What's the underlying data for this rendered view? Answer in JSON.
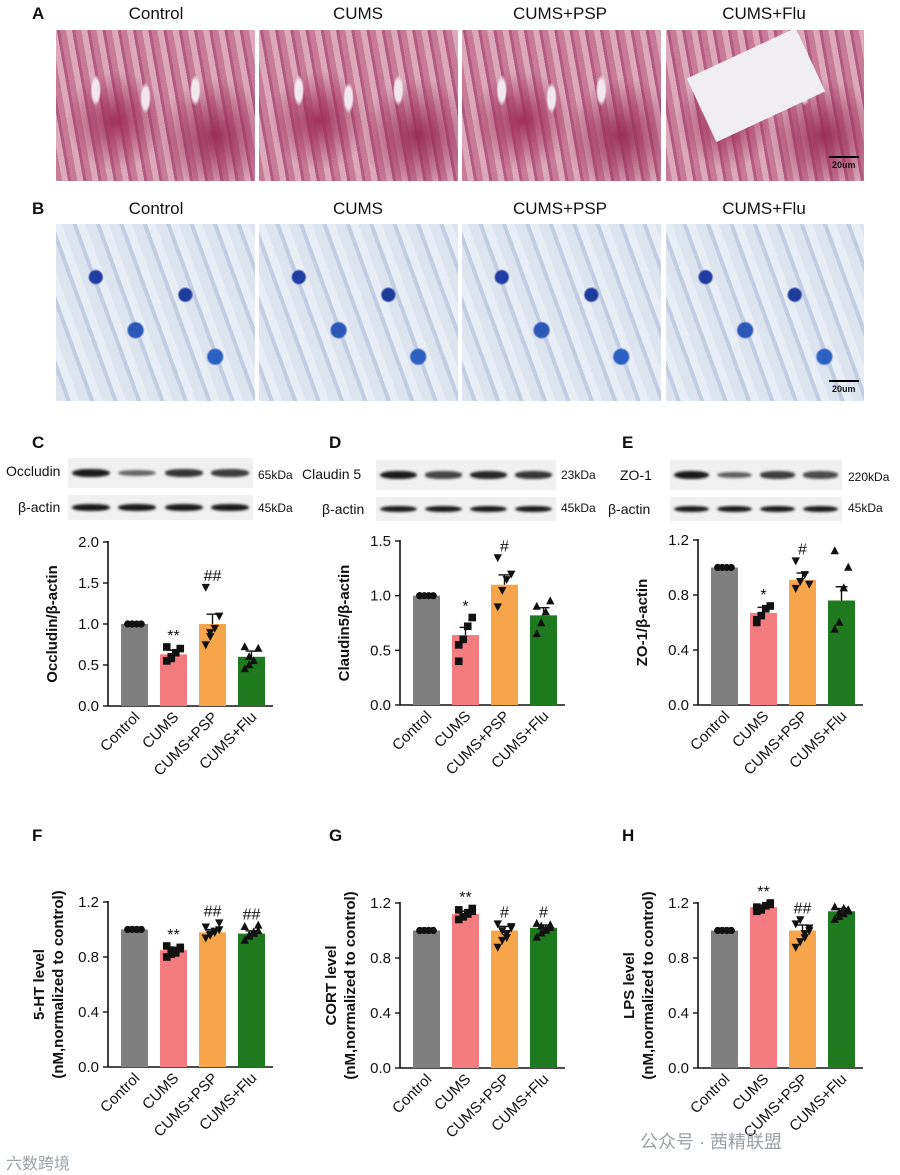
{
  "panel_labels": {
    "A": "A",
    "B": "B",
    "C": "C",
    "D": "D",
    "E": "E",
    "F": "F",
    "G": "G",
    "H": "H"
  },
  "groups": [
    "Control",
    "CUMS",
    "CUMS+PSP",
    "CUMS+Flu"
  ],
  "histology": {
    "row_a_headers": [
      "Control",
      "CUMS",
      "CUMS+PSP",
      "CUMS+Flu"
    ],
    "row_b_headers": [
      "Control",
      "CUMS",
      "CUMS+PSP",
      "CUMS+Flu"
    ],
    "scale_bar": "20um"
  },
  "western_blots": [
    {
      "protein": "Occludin",
      "protein_kda": "65kDa",
      "loading": "β-actin",
      "loading_kda": "45kDa",
      "band_strength": [
        1.0,
        0.45,
        0.8,
        0.75
      ],
      "actin_strength": [
        1,
        1,
        1,
        1
      ]
    },
    {
      "protein": "Claudin 5",
      "protein_kda": "23kDa",
      "loading": "β-actin",
      "loading_kda": "45kDa",
      "band_strength": [
        1.0,
        0.7,
        0.9,
        0.8
      ],
      "actin_strength": [
        1,
        1,
        1,
        1
      ]
    },
    {
      "protein": "ZO-1",
      "protein_kda": "220kDa",
      "loading": "β-actin",
      "loading_kda": "45kDa",
      "band_strength": [
        1.0,
        0.5,
        0.75,
        0.65
      ],
      "actin_strength": [
        1,
        1,
        1,
        1
      ]
    }
  ],
  "colors": {
    "Control": "#7f7f7f",
    "CUMS": "#f47c80",
    "CUMS+PSP": "#f7a54a",
    "CUMS+Flu": "#1f7a1f"
  },
  "chart_data": [
    {
      "id": "C",
      "type": "bar",
      "categories": [
        "Control",
        "CUMS",
        "CUMS+PSP",
        "CUMS+Flu"
      ],
      "values": [
        1.0,
        0.63,
        1.0,
        0.6
      ],
      "errors": [
        0,
        0.05,
        0.12,
        0.07
      ],
      "ylabel": "Occludin/β-actin",
      "ylim": [
        0,
        2.0
      ],
      "ticks": [
        0.0,
        0.5,
        1.0,
        1.5,
        2.0
      ],
      "tick_labels": [
        "0.0",
        "0.5",
        "1.0",
        "1.5",
        "2.0"
      ],
      "annotations": [
        "",
        "**",
        "##",
        ""
      ],
      "marker": [
        "circle",
        "square",
        "triangle-down",
        "triangle"
      ],
      "points": [
        [
          1,
          1,
          1,
          1,
          1,
          1
        ],
        [
          0.55,
          0.6,
          0.65,
          0.7,
          0.72,
          0.58
        ],
        [
          0.75,
          0.85,
          0.95,
          1.1,
          1.45,
          0.9
        ],
        [
          0.45,
          0.5,
          0.55,
          0.7,
          0.72,
          0.6
        ]
      ]
    },
    {
      "id": "D",
      "type": "bar",
      "categories": [
        "Control",
        "CUMS",
        "CUMS+PSP",
        "CUMS+Flu"
      ],
      "values": [
        1.0,
        0.64,
        1.1,
        0.82
      ],
      "errors": [
        0,
        0.07,
        0.09,
        0.07
      ],
      "ylabel": "Claudin5/β-actin",
      "ylim": [
        0,
        1.5
      ],
      "ticks": [
        0.0,
        0.5,
        1.0,
        1.5
      ],
      "tick_labels": [
        "0.0",
        "0.5",
        "1.0",
        "1.5"
      ],
      "annotations": [
        "",
        "*",
        "#",
        ""
      ],
      "marker": [
        "circle",
        "square",
        "triangle-down",
        "triangle"
      ],
      "points": [
        [
          1,
          1,
          1,
          1,
          1
        ],
        [
          0.4,
          0.6,
          0.72,
          0.8,
          0.55
        ],
        [
          0.9,
          1.05,
          1.15,
          1.2,
          1.35
        ],
        [
          0.65,
          0.75,
          0.85,
          0.95,
          0.9
        ]
      ]
    },
    {
      "id": "E",
      "type": "bar",
      "categories": [
        "Control",
        "CUMS",
        "CUMS+PSP",
        "CUMS+Flu"
      ],
      "values": [
        1.0,
        0.67,
        0.91,
        0.76
      ],
      "errors": [
        0,
        0.04,
        0.05,
        0.1
      ],
      "ylabel": "ZO-1/β-actin",
      "ylim": [
        0,
        1.2
      ],
      "ticks": [
        0.0,
        0.4,
        0.8,
        1.2
      ],
      "tick_labels": [
        "0.0",
        "0.4",
        "0.8",
        "1.2"
      ],
      "annotations": [
        "",
        "*",
        "#",
        ""
      ],
      "marker": [
        "circle",
        "square",
        "triangle-down",
        "triangle"
      ],
      "points": [
        [
          1,
          1,
          1,
          1,
          1
        ],
        [
          0.6,
          0.65,
          0.7,
          0.72,
          0.62
        ],
        [
          0.85,
          0.9,
          0.95,
          0.88,
          1.05
        ],
        [
          0.55,
          0.6,
          0.85,
          1.0,
          1.12
        ]
      ]
    },
    {
      "id": "F",
      "type": "bar",
      "categories": [
        "Control",
        "CUMS",
        "CUMS+PSP",
        "CUMS+Flu"
      ],
      "values": [
        1.0,
        0.85,
        0.98,
        0.97
      ],
      "errors": [
        0,
        0.02,
        0.02,
        0.02
      ],
      "ylabel": "5-HT level\n(nM,normalized to control)",
      "ylim": [
        0,
        1.2
      ],
      "ticks": [
        0.0,
        0.4,
        0.8,
        1.2
      ],
      "tick_labels": [
        "0.0",
        "0.4",
        "0.8",
        "1.2"
      ],
      "annotations": [
        "",
        "**",
        "##",
        "##"
      ],
      "marker": [
        "circle",
        "square",
        "triangle-down",
        "triangle"
      ],
      "points": [
        [
          1,
          1,
          1,
          1,
          1,
          1,
          1,
          1
        ],
        [
          0.8,
          0.82,
          0.84,
          0.86,
          0.88,
          0.85,
          0.83,
          0.87
        ],
        [
          0.94,
          0.96,
          0.98,
          1.0,
          1.02,
          0.97,
          0.99,
          1.05
        ],
        [
          0.92,
          0.95,
          0.97,
          0.99,
          1.02,
          0.96,
          0.98,
          1.03
        ]
      ]
    },
    {
      "id": "G",
      "type": "bar",
      "categories": [
        "Control",
        "CUMS",
        "CUMS+PSP",
        "CUMS+Flu"
      ],
      "values": [
        1.0,
        1.12,
        1.0,
        1.02
      ],
      "errors": [
        0,
        0.02,
        0.03,
        0.02
      ],
      "ylabel": "CORT level\n(nM,normalized to control)",
      "ylim": [
        0,
        1.2
      ],
      "ticks": [
        0.0,
        0.4,
        0.8,
        1.2
      ],
      "tick_labels": [
        "0.0",
        "0.4",
        "0.8",
        "1.2"
      ],
      "annotations": [
        "",
        "**",
        "#",
        "#"
      ],
      "marker": [
        "circle",
        "square",
        "triangle-down",
        "triangle"
      ],
      "points": [
        [
          1,
          1,
          1,
          1,
          1,
          1,
          1,
          1
        ],
        [
          1.08,
          1.1,
          1.12,
          1.14,
          1.15,
          1.1,
          1.13,
          1.16
        ],
        [
          0.88,
          0.93,
          0.98,
          1.02,
          1.05,
          1.0,
          0.95,
          1.03
        ],
        [
          0.95,
          0.98,
          1.0,
          1.02,
          1.05,
          1.03,
          1.01,
          1.04
        ]
      ]
    },
    {
      "id": "H",
      "type": "bar",
      "categories": [
        "Control",
        "CUMS",
        "CUMS+PSP",
        "CUMS+Flu"
      ],
      "values": [
        1.0,
        1.17,
        1.0,
        1.14
      ],
      "errors": [
        0,
        0.015,
        0.04,
        0.02
      ],
      "ylabel": "LPS level\n(nM,normalized to control)",
      "ylim": [
        0,
        1.2
      ],
      "ticks": [
        0.0,
        0.4,
        0.8,
        1.2
      ],
      "tick_labels": [
        "0.0",
        "0.4",
        "0.8",
        "1.2"
      ],
      "annotations": [
        "",
        "**",
        "##",
        ""
      ],
      "marker": [
        "circle",
        "square",
        "triangle-down",
        "triangle"
      ],
      "points": [
        [
          1,
          1,
          1,
          1,
          1,
          1,
          1,
          1
        ],
        [
          1.14,
          1.16,
          1.18,
          1.19,
          1.17,
          1.15,
          1.18,
          1.2
        ],
        [
          0.88,
          0.92,
          0.95,
          1.0,
          1.05,
          1.08,
          0.98,
          1.02
        ],
        [
          1.08,
          1.1,
          1.12,
          1.15,
          1.17,
          1.13,
          1.16,
          1.14
        ]
      ]
    }
  ],
  "watermarks": {
    "left": "六数跨境",
    "right": "公众号 · 茜精联盟"
  }
}
